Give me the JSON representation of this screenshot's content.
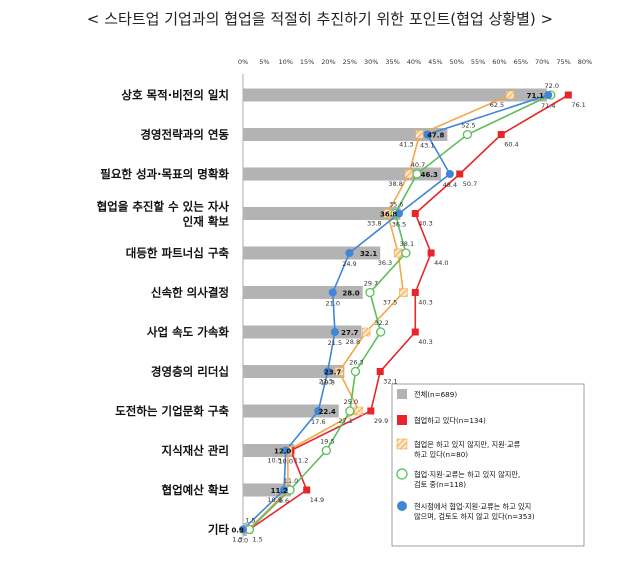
{
  "chart_data": {
    "type": "bar",
    "title": "< 스타트업 기업과의 협업을 적절히 추진하기 위한 포인트(협업 상황별) >",
    "x_ticks": [
      "0%",
      "5%",
      "10%",
      "15%",
      "20%",
      "25%",
      "30%",
      "35%",
      "40%",
      "45%",
      "50%",
      "55%",
      "60%",
      "65%",
      "70%",
      "75%",
      "80%"
    ],
    "xlim": [
      0,
      80
    ],
    "categories": [
      "상호 목적·비전의 일치",
      "경영전략과의 연동",
      "필요한 성과·목표의 명확화",
      "협업을 추진할 수 있는 자사 인재 확보",
      "대등한 파트너십 구축",
      "신속한 의사결정",
      "사업 속도 가속화",
      "경영층의 리더십",
      "도전하는 기업문화 구축",
      "지식재산 관리",
      "협업예산 확보",
      "기타"
    ],
    "category_lines": [
      [
        "상호 목적·비전의 일치"
      ],
      [
        "경영전략과의 연동"
      ],
      [
        "필요한 성과·목표의 명확화"
      ],
      [
        "협업을 추진할 수 있는 자사",
        "인재 확보"
      ],
      [
        "대등한 파트너십 구축"
      ],
      [
        "신속한 의사결정"
      ],
      [
        "사업 속도 가속화"
      ],
      [
        "경영층의 리더십"
      ],
      [
        "도전하는 기업문화 구축"
      ],
      [
        "지식재산 관리"
      ],
      [
        "협업예산 확보"
      ],
      [
        "기타"
      ]
    ],
    "series": [
      {
        "name": "전체(n=689)",
        "kind": "bar",
        "color": "#b3b3b3",
        "values": [
          71.1,
          47.8,
          46.3,
          36.8,
          32.1,
          28.0,
          27.7,
          23.7,
          22.4,
          12.0,
          11.2,
          0.9
        ]
      },
      {
        "name": "협업하고 있다(n=134)",
        "kind": "line",
        "marker": "filled-square",
        "color": "#e8262a",
        "values": [
          76.1,
          60.4,
          50.7,
          40.3,
          44.0,
          40.3,
          40.3,
          32.1,
          29.9,
          11.2,
          14.9,
          1.5
        ]
      },
      {
        "name": "협업은 하고 있지 않지만, 지원·교류하고 있다(n=80)",
        "kind": "line",
        "marker": "hatched-square",
        "color": "#f4a84a",
        "values": [
          62.5,
          41.3,
          38.8,
          33.8,
          36.3,
          37.5,
          28.8,
          22.5,
          27.1,
          10.5,
          10.5,
          1.3
        ]
      },
      {
        "name": "협업·지원·교류는 하고 있지 않지만, 검토 중(n=118)",
        "kind": "line",
        "marker": "open-circle",
        "color": "#5bbf5b",
        "values": [
          72.0,
          52.5,
          40.7,
          35.6,
          38.1,
          29.7,
          32.2,
          26.3,
          25.0,
          19.5,
          11.0,
          1.5
        ]
      },
      {
        "name": "현시점에서 협업·지원·교류는 하고 있지 않으며, 검토도 하지 않고 있다(n=353)",
        "kind": "line",
        "marker": "filled-circle",
        "color": "#3f86d9",
        "values": [
          71.4,
          43.1,
          48.4,
          36.5,
          24.9,
          21.0,
          21.5,
          19.8,
          17.6,
          10.0,
          9.6,
          0.0
        ]
      }
    ],
    "legend": {
      "placement": "bottom-right",
      "entries": [
        {
          "lines": [
            "전체(n=689)"
          ],
          "marker": "gray-box"
        },
        {
          "lines": [
            "협업하고 있다(n=134)"
          ],
          "marker": "filled-square"
        },
        {
          "lines": [
            "협업은 하고 있지 않지만, 지원·교류",
            "하고 있다(n=80)"
          ],
          "marker": "hatched-square"
        },
        {
          "lines": [
            "협업·지원·교류는 하고 있지 않지만,",
            "검토 중(n=118)"
          ],
          "marker": "open-circle"
        },
        {
          "lines": [
            "현시점에서 협업·지원·교류는 하고 있지",
            "않으며, 검토도 하지 않고 있다(n=353)"
          ],
          "marker": "filled-circle"
        }
      ]
    }
  }
}
